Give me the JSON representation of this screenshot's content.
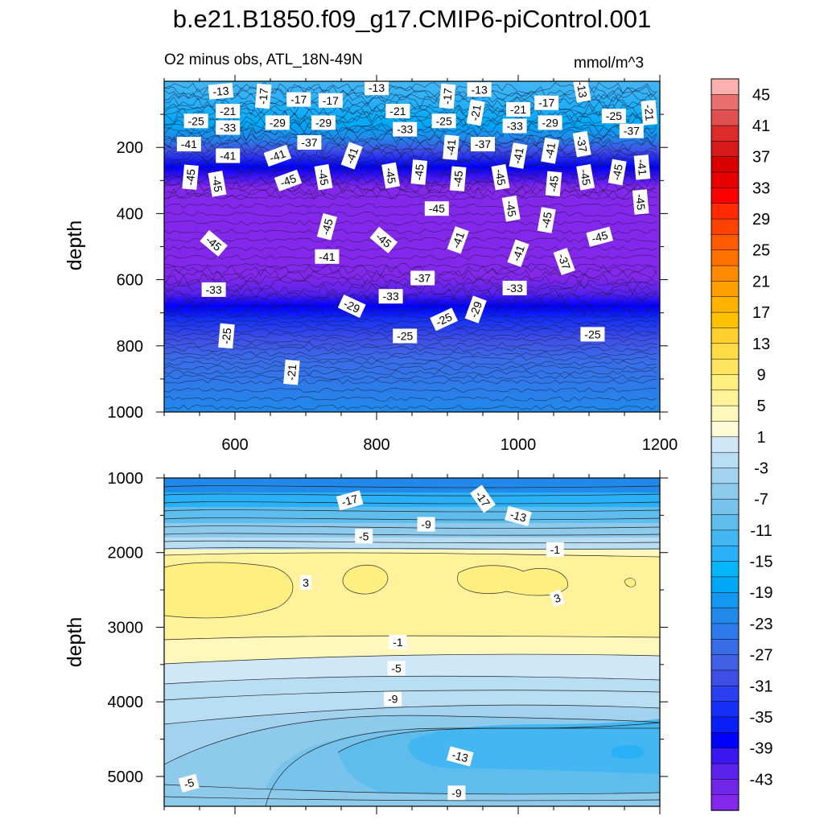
{
  "title": "b.e21.B1850.f09_g17.CMIP6-piControl.001",
  "subtitle": "O2 minus obs, ATL_18N-49N",
  "units": "mmol/m^3",
  "chart_data": [
    {
      "type": "heatmap",
      "panel": "top",
      "ylabel": "depth",
      "y_axis_inverted": true,
      "xlim": [
        500,
        1200
      ],
      "ylim": [
        1000,
        0
      ],
      "xticks": [
        600,
        800,
        1000,
        1200
      ],
      "yticks": [
        200,
        400,
        600,
        800,
        1000
      ],
      "depth_profile": [
        {
          "depth": 0,
          "value": -11
        },
        {
          "depth": 60,
          "value": -13
        },
        {
          "depth": 130,
          "value": -17
        },
        {
          "depth": 170,
          "value": -21
        },
        {
          "depth": 210,
          "value": -29
        },
        {
          "depth": 260,
          "value": -37
        },
        {
          "depth": 320,
          "value": -45
        },
        {
          "depth": 380,
          "value": -47
        },
        {
          "depth": 540,
          "value": -47
        },
        {
          "depth": 590,
          "value": -45
        },
        {
          "depth": 640,
          "value": -41
        },
        {
          "depth": 680,
          "value": -37
        },
        {
          "depth": 720,
          "value": -33
        },
        {
          "depth": 780,
          "value": -29
        },
        {
          "depth": 840,
          "value": -25
        },
        {
          "depth": 1000,
          "value": -21
        }
      ],
      "contour_labels": [
        {
          "x": 580,
          "y": 30,
          "text": "-13",
          "rot": -5
        },
        {
          "x": 800,
          "y": 20,
          "text": "-13",
          "rot": 0
        },
        {
          "x": 945,
          "y": 25,
          "text": "-13",
          "rot": 0
        },
        {
          "x": 1090,
          "y": 25,
          "text": "-13",
          "rot": 80
        },
        {
          "x": 640,
          "y": 45,
          "text": "-17",
          "rot": -85
        },
        {
          "x": 690,
          "y": 55,
          "text": "-17",
          "rot": 0
        },
        {
          "x": 735,
          "y": 58,
          "text": "-17",
          "rot": 0
        },
        {
          "x": 900,
          "y": 45,
          "text": "-17",
          "rot": -85
        },
        {
          "x": 1040,
          "y": 65,
          "text": "-17",
          "rot": 0
        },
        {
          "x": 590,
          "y": 90,
          "text": "-21",
          "rot": 0
        },
        {
          "x": 830,
          "y": 90,
          "text": "-21",
          "rot": 0
        },
        {
          "x": 940,
          "y": 95,
          "text": "-21",
          "rot": -80
        },
        {
          "x": 1000,
          "y": 85,
          "text": "-21",
          "rot": 0
        },
        {
          "x": 1185,
          "y": 95,
          "text": "-21",
          "rot": 85
        },
        {
          "x": 545,
          "y": 120,
          "text": "-25",
          "rot": 0
        },
        {
          "x": 895,
          "y": 120,
          "text": "-25",
          "rot": 0
        },
        {
          "x": 1135,
          "y": 105,
          "text": "-25",
          "rot": 0
        },
        {
          "x": 590,
          "y": 140,
          "text": "-33",
          "rot": 0
        },
        {
          "x": 840,
          "y": 145,
          "text": "-33",
          "rot": 0
        },
        {
          "x": 995,
          "y": 135,
          "text": "-33",
          "rot": 0
        },
        {
          "x": 660,
          "y": 125,
          "text": "-29",
          "rot": 0
        },
        {
          "x": 725,
          "y": 125,
          "text": "-29",
          "rot": 0
        },
        {
          "x": 1045,
          "y": 125,
          "text": "-29",
          "rot": 0
        },
        {
          "x": 1160,
          "y": 150,
          "text": "-37",
          "rot": 0
        },
        {
          "x": 705,
          "y": 185,
          "text": "-37",
          "rot": 0
        },
        {
          "x": 950,
          "y": 190,
          "text": "-37",
          "rot": 0
        },
        {
          "x": 1090,
          "y": 190,
          "text": "-37",
          "rot": 80
        },
        {
          "x": 535,
          "y": 190,
          "text": "-41",
          "rot": 0
        },
        {
          "x": 590,
          "y": 225,
          "text": "-41",
          "rot": 0
        },
        {
          "x": 660,
          "y": 225,
          "text": "-41",
          "rot": -20
        },
        {
          "x": 765,
          "y": 225,
          "text": "-41",
          "rot": -70
        },
        {
          "x": 905,
          "y": 200,
          "text": "-41",
          "rot": -85
        },
        {
          "x": 1000,
          "y": 225,
          "text": "-41",
          "rot": -80
        },
        {
          "x": 1045,
          "y": 210,
          "text": "-41",
          "rot": -80
        },
        {
          "x": 1175,
          "y": 260,
          "text": "-41",
          "rot": 85
        },
        {
          "x": 537,
          "y": 290,
          "text": "-45",
          "rot": -85
        },
        {
          "x": 575,
          "y": 310,
          "text": "-45",
          "rot": 80
        },
        {
          "x": 675,
          "y": 300,
          "text": "-45",
          "rot": -20
        },
        {
          "x": 725,
          "y": 290,
          "text": "-45",
          "rot": 80
        },
        {
          "x": 820,
          "y": 285,
          "text": "-45",
          "rot": 80
        },
        {
          "x": 860,
          "y": 275,
          "text": "-45",
          "rot": -85
        },
        {
          "x": 915,
          "y": 295,
          "text": "-45",
          "rot": -85
        },
        {
          "x": 975,
          "y": 290,
          "text": "-45",
          "rot": 80
        },
        {
          "x": 1050,
          "y": 310,
          "text": "-45",
          "rot": -85
        },
        {
          "x": 1095,
          "y": 290,
          "text": "-45",
          "rot": 80
        },
        {
          "x": 1140,
          "y": 275,
          "text": "-45",
          "rot": -80
        },
        {
          "x": 1173,
          "y": 365,
          "text": "-45",
          "rot": 85
        },
        {
          "x": 885,
          "y": 385,
          "text": "-45",
          "rot": 0
        },
        {
          "x": 990,
          "y": 385,
          "text": "-45",
          "rot": 80
        },
        {
          "x": 1040,
          "y": 420,
          "text": "-45",
          "rot": -80
        },
        {
          "x": 1115,
          "y": 470,
          "text": "-45",
          "rot": -15
        },
        {
          "x": 730,
          "y": 440,
          "text": "-45",
          "rot": -75
        },
        {
          "x": 810,
          "y": 480,
          "text": "-45",
          "rot": 40
        },
        {
          "x": 570,
          "y": 490,
          "text": "-45",
          "rot": 40
        },
        {
          "x": 730,
          "y": 530,
          "text": "-41",
          "rot": 0
        },
        {
          "x": 915,
          "y": 480,
          "text": "-41",
          "rot": -70
        },
        {
          "x": 1000,
          "y": 520,
          "text": "-41",
          "rot": -70
        },
        {
          "x": 570,
          "y": 630,
          "text": "-33",
          "rot": 0
        },
        {
          "x": 820,
          "y": 650,
          "text": "-33",
          "rot": 0
        },
        {
          "x": 995,
          "y": 625,
          "text": "-33",
          "rot": 0
        },
        {
          "x": 865,
          "y": 595,
          "text": "-37",
          "rot": 0
        },
        {
          "x": 1065,
          "y": 545,
          "text": "-37",
          "rot": 70
        },
        {
          "x": 765,
          "y": 680,
          "text": "-29",
          "rot": 25
        },
        {
          "x": 940,
          "y": 690,
          "text": "-29",
          "rot": -70
        },
        {
          "x": 588,
          "y": 770,
          "text": "-25",
          "rot": -85
        },
        {
          "x": 840,
          "y": 770,
          "text": "-25",
          "rot": 0
        },
        {
          "x": 895,
          "y": 720,
          "text": "-25",
          "rot": -25
        },
        {
          "x": 1105,
          "y": 765,
          "text": "-25",
          "rot": 0
        },
        {
          "x": 680,
          "y": 880,
          "text": "-21",
          "rot": -85
        }
      ]
    },
    {
      "type": "heatmap",
      "panel": "bottom",
      "ylabel": "depth",
      "y_axis_inverted": true,
      "ylim": [
        1000,
        5400
      ],
      "yticks": [
        1000,
        2000,
        3000,
        4000,
        5000
      ],
      "contour_labels": [
        {
          "x": 762,
          "y": 1300,
          "text": "-17",
          "rot": -15
        },
        {
          "x": 950,
          "y": 1280,
          "text": "-17",
          "rot": 55
        },
        {
          "x": 1000,
          "y": 1510,
          "text": "-13",
          "rot": 15
        },
        {
          "x": 870,
          "y": 1620,
          "text": "-9",
          "rot": 0
        },
        {
          "x": 782,
          "y": 1780,
          "text": "-5",
          "rot": 0
        },
        {
          "x": 1052,
          "y": 1960,
          "text": "-1",
          "rot": 0
        },
        {
          "x": 700,
          "y": 2400,
          "text": "3",
          "rot": 0
        },
        {
          "x": 1055,
          "y": 2610,
          "text": "3",
          "rot": -20
        },
        {
          "x": 830,
          "y": 3200,
          "text": "-1",
          "rot": 0
        },
        {
          "x": 828,
          "y": 3550,
          "text": "-5",
          "rot": 0
        },
        {
          "x": 823,
          "y": 3960,
          "text": "-9",
          "rot": 0
        },
        {
          "x": 918,
          "y": 4730,
          "text": "-13",
          "rot": 15
        },
        {
          "x": 535,
          "y": 5090,
          "text": "-5",
          "rot": -15
        },
        {
          "x": 913,
          "y": 5220,
          "text": "-9",
          "rot": 0
        }
      ]
    }
  ],
  "colorbar": {
    "labels": [
      "45",
      "41",
      "37",
      "33",
      "29",
      "25",
      "21",
      "17",
      "13",
      "9",
      "5",
      "1",
      "-3",
      "-7",
      "-11",
      "-15",
      "-19",
      "-23",
      "-27",
      "-31",
      "-35",
      "-39",
      "-43"
    ],
    "colors": [
      "#fbb1b0",
      "#ea7070",
      "#e05050",
      "#dd2b2b",
      "#d41a1a",
      "#d90000",
      "#e80000",
      "#ff0000",
      "#ff2a00",
      "#ff4200",
      "#ff5a00",
      "#ff7200",
      "#ff8a00",
      "#ffa000",
      "#ffb200",
      "#ffc200",
      "#ffd030",
      "#ffdb48",
      "#ffe460",
      "#ffee80",
      "#fff29a",
      "#fff7bb",
      "#fffbd6",
      "#cfe7f6",
      "#b9ddf2",
      "#a3d2ef",
      "#8ecaec",
      "#78c3ec",
      "#5fbdee",
      "#44b6f2",
      "#29b0f6",
      "#05b5f8",
      "#00a8f5",
      "#1299ef",
      "#2189ea",
      "#2e7aea",
      "#3a6ce8",
      "#3f5fe5",
      "#3f4fe6",
      "#2a40ee",
      "#1530f4",
      "#0a1ff8",
      "#0000ff",
      "#3a16f0",
      "#5a22eb",
      "#7127ea",
      "#8327ea"
    ]
  }
}
